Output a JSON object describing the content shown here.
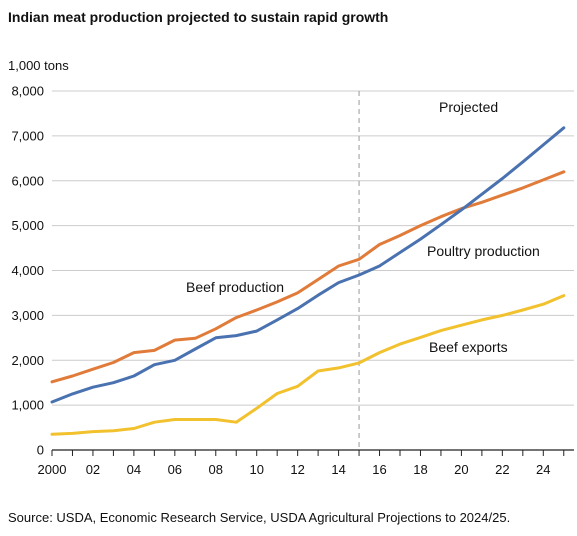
{
  "chart_data": {
    "type": "line",
    "title": "Indian meat production projected to sustain rapid growth",
    "unit_label": "1,000 tons",
    "x": [
      2000,
      2001,
      2002,
      2003,
      2004,
      2005,
      2006,
      2007,
      2008,
      2009,
      2010,
      2011,
      2012,
      2013,
      2014,
      2015,
      2016,
      2017,
      2018,
      2019,
      2020,
      2021,
      2022,
      2023,
      2024,
      2025
    ],
    "xlim": [
      2000,
      2025.5
    ],
    "x_ticks": [
      2000,
      2002,
      2004,
      2006,
      2008,
      2010,
      2012,
      2014,
      2016,
      2018,
      2020,
      2022,
      2024
    ],
    "x_tick_labels": [
      "2000",
      "02",
      "04",
      "06",
      "08",
      "10",
      "12",
      "14",
      "16",
      "18",
      "20",
      "22",
      "24"
    ],
    "ylim": [
      0,
      8000
    ],
    "y_ticks": [
      0,
      1000,
      2000,
      3000,
      4000,
      5000,
      6000,
      7000,
      8000
    ],
    "y_tick_labels": [
      "0",
      "1,000",
      "2,000",
      "3,000",
      "4,000",
      "5,000",
      "6,000",
      "7,000",
      "8,000"
    ],
    "grid": "horizontal",
    "projection_start": 2015,
    "series": [
      {
        "name": "Beef production",
        "color": "#e07b39",
        "values": [
          1520,
          1650,
          1800,
          1950,
          2170,
          2220,
          2450,
          2490,
          2700,
          2950,
          3120,
          3300,
          3500,
          3800,
          4100,
          4250,
          4580,
          4780,
          5000,
          5200,
          5380,
          5520,
          5680,
          5840,
          6020,
          6200
        ]
      },
      {
        "name": "Poultry production",
        "color": "#4a72b0",
        "values": [
          1070,
          1250,
          1400,
          1500,
          1650,
          1900,
          2000,
          2250,
          2500,
          2550,
          2650,
          2900,
          3150,
          3450,
          3730,
          3900,
          4100,
          4400,
          4700,
          5020,
          5350,
          5700,
          6050,
          6420,
          6800,
          7180
        ]
      },
      {
        "name": "Beef exports",
        "color": "#f2c12e",
        "values": [
          350,
          370,
          410,
          430,
          480,
          620,
          680,
          680,
          680,
          620,
          930,
          1260,
          1420,
          1760,
          1830,
          1940,
          2170,
          2360,
          2510,
          2660,
          2780,
          2900,
          3000,
          3120,
          3250,
          3440
        ]
      }
    ],
    "annotations": {
      "projected": "Projected",
      "beef_production": "Beef production",
      "poultry_production": "Poultry production",
      "beef_exports": "Beef exports"
    },
    "source": "Source: USDA, Economic Research Service, USDA Agricultural Projections to 2024/25."
  }
}
